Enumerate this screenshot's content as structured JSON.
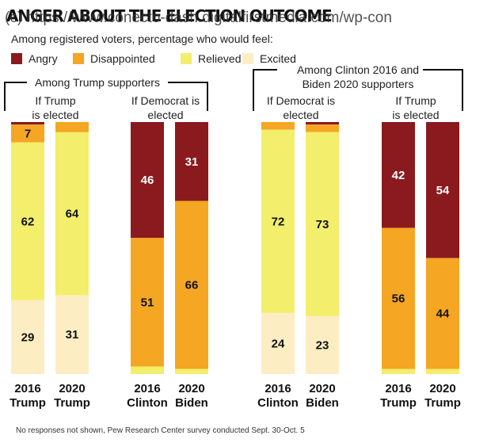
{
  "header": {
    "title": "ANGER ABOUT THE ELECTION OUTCOME",
    "url_overlay": "(c) https://www.conecto-dash.digitalfirstmedia.com/wp-con",
    "subtitle": "Among registered voters, percentage who would feel:"
  },
  "legend": [
    {
      "name": "Angry",
      "color": "#8b1a1e"
    },
    {
      "name": "Disappointed",
      "color": "#f5a623"
    },
    {
      "name": "Relieved",
      "color": "#f3ee6b"
    },
    {
      "name": "Excited",
      "color": "#fdedc3"
    }
  ],
  "groups": {
    "trump_supporters": "Among Trump supporters",
    "dem_supporters_line1": "Among Clinton 2016 and",
    "dem_supporters_line2": "Biden 2020 supporters",
    "if_trump_1_line1": "If Trump",
    "if_trump_1_line2": "is elected",
    "if_dem_1_line1": "If Democrat is",
    "if_dem_1_line2": "elected",
    "if_dem_2_line1": "If Democrat is",
    "if_dem_2_line2": "elected",
    "if_trump_2_line1": "If Trump",
    "if_trump_2_line2": "is elected"
  },
  "chart_data": {
    "type": "bar",
    "stacked": true,
    "series_order": [
      "Angry",
      "Disappointed",
      "Relieved",
      "Excited"
    ],
    "bars": [
      {
        "year": "2016",
        "name": "Trump",
        "values": [
          1,
          7,
          62,
          29
        ],
        "labels": [
          "",
          "7",
          "62",
          "29"
        ]
      },
      {
        "year": "2020",
        "name": "Trump",
        "values": [
          0,
          4,
          64,
          31
        ],
        "labels": [
          "",
          "",
          "64",
          "31"
        ]
      },
      {
        "year": "2016",
        "name": "Clinton",
        "values": [
          46,
          51,
          3,
          0
        ],
        "labels": [
          "46",
          "51",
          "",
          ""
        ]
      },
      {
        "year": "2020",
        "name": "Biden",
        "values": [
          31,
          66,
          2,
          0
        ],
        "labels": [
          "31",
          "66",
          "",
          ""
        ]
      },
      {
        "year": "2016",
        "name": "Clinton",
        "values": [
          0,
          3,
          72,
          24
        ],
        "labels": [
          "",
          "",
          "72",
          "24"
        ]
      },
      {
        "year": "2020",
        "name": "Biden",
        "values": [
          1,
          3,
          73,
          23
        ],
        "labels": [
          "",
          "",
          "73",
          "23"
        ]
      },
      {
        "year": "2016",
        "name": "Trump",
        "values": [
          42,
          56,
          2,
          0
        ],
        "labels": [
          "42",
          "56",
          "",
          ""
        ]
      },
      {
        "year": "2020",
        "name": "Trump",
        "values": [
          54,
          44,
          2,
          0
        ],
        "labels": [
          "54",
          "44",
          "",
          ""
        ]
      }
    ]
  },
  "footer": "No responses not shown, Pew Research Center survey conducted Sept. 30-Oct. 5"
}
